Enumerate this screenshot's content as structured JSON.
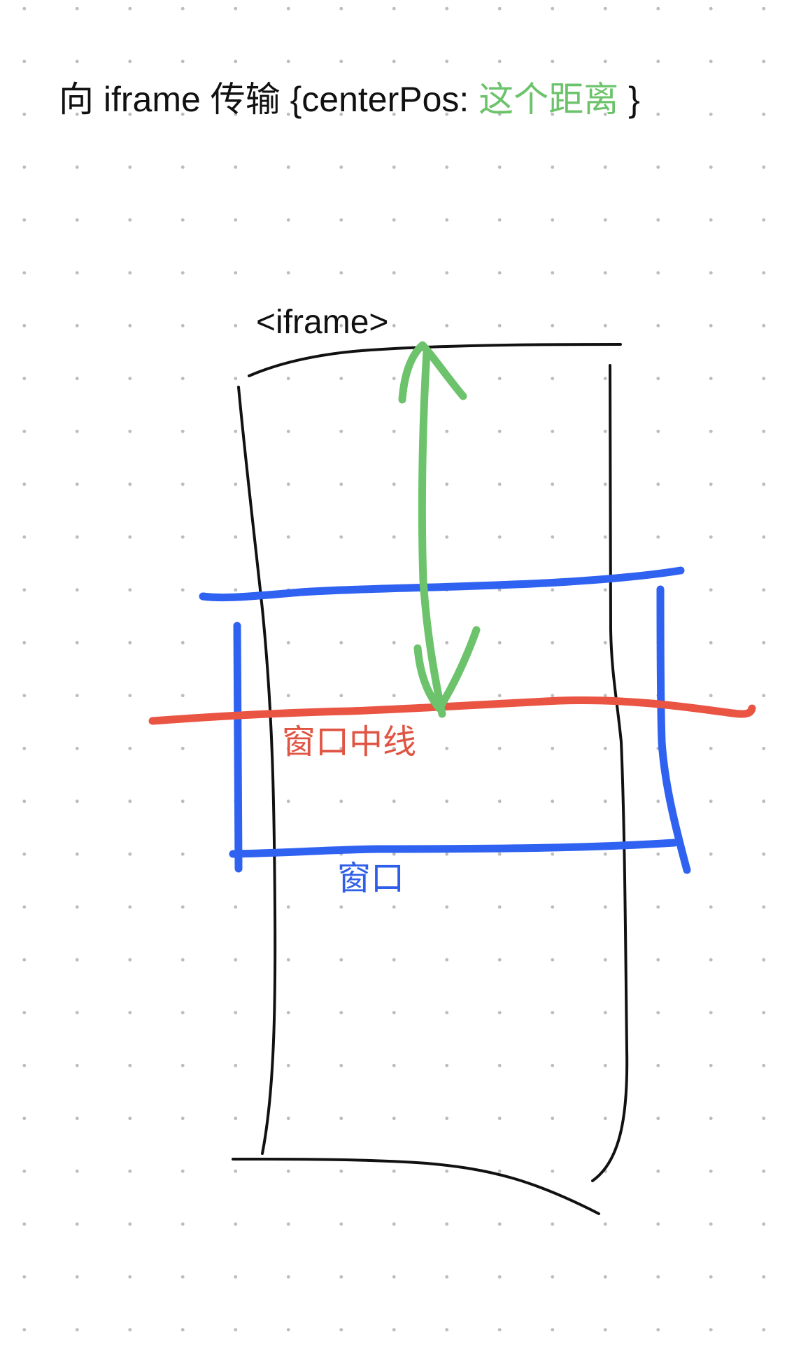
{
  "title": {
    "prefix": "向 iframe 传输 {centerPos: ",
    "highlight": "这个距离",
    "suffix": " }"
  },
  "labels": {
    "iframe": "<iframe>",
    "window_center_line": "窗口中线",
    "window": "窗口"
  },
  "colors": {
    "iframe_outline": "#111111",
    "window_box": "#2f62f0",
    "center_line": "#ea5443",
    "distance_arrow": "#6cc36b",
    "dot_grid": "#bdbdbd",
    "background": "#ffffff"
  }
}
